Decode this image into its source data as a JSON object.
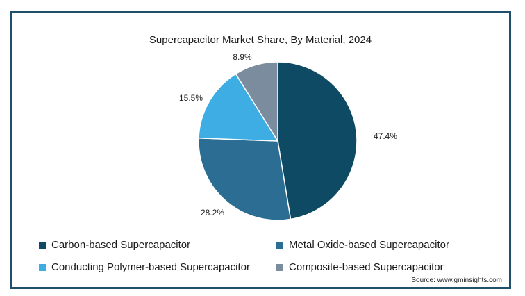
{
  "chart_data": {
    "type": "pie",
    "title": "Supercapacitor Market Share, By Material, 2024",
    "slices": [
      {
        "name": "Carbon-based Supercapacitor",
        "value": 47.4,
        "label": "47.4%",
        "color": "#0e4a63"
      },
      {
        "name": "Metal Oxide-based Supercapacitor",
        "value": 28.2,
        "label": "28.2%",
        "color": "#2c6e93"
      },
      {
        "name": "Conducting Polymer-based Supercapacitor",
        "value": 15.5,
        "label": "15.5%",
        "color": "#3eade3"
      },
      {
        "name": "Composite-based Supercapacitor",
        "value": 8.9,
        "label": "8.9%",
        "color": "#7b8c9e"
      }
    ],
    "legend_placement": "bottom",
    "source": "Source: www.gminsights.com"
  }
}
